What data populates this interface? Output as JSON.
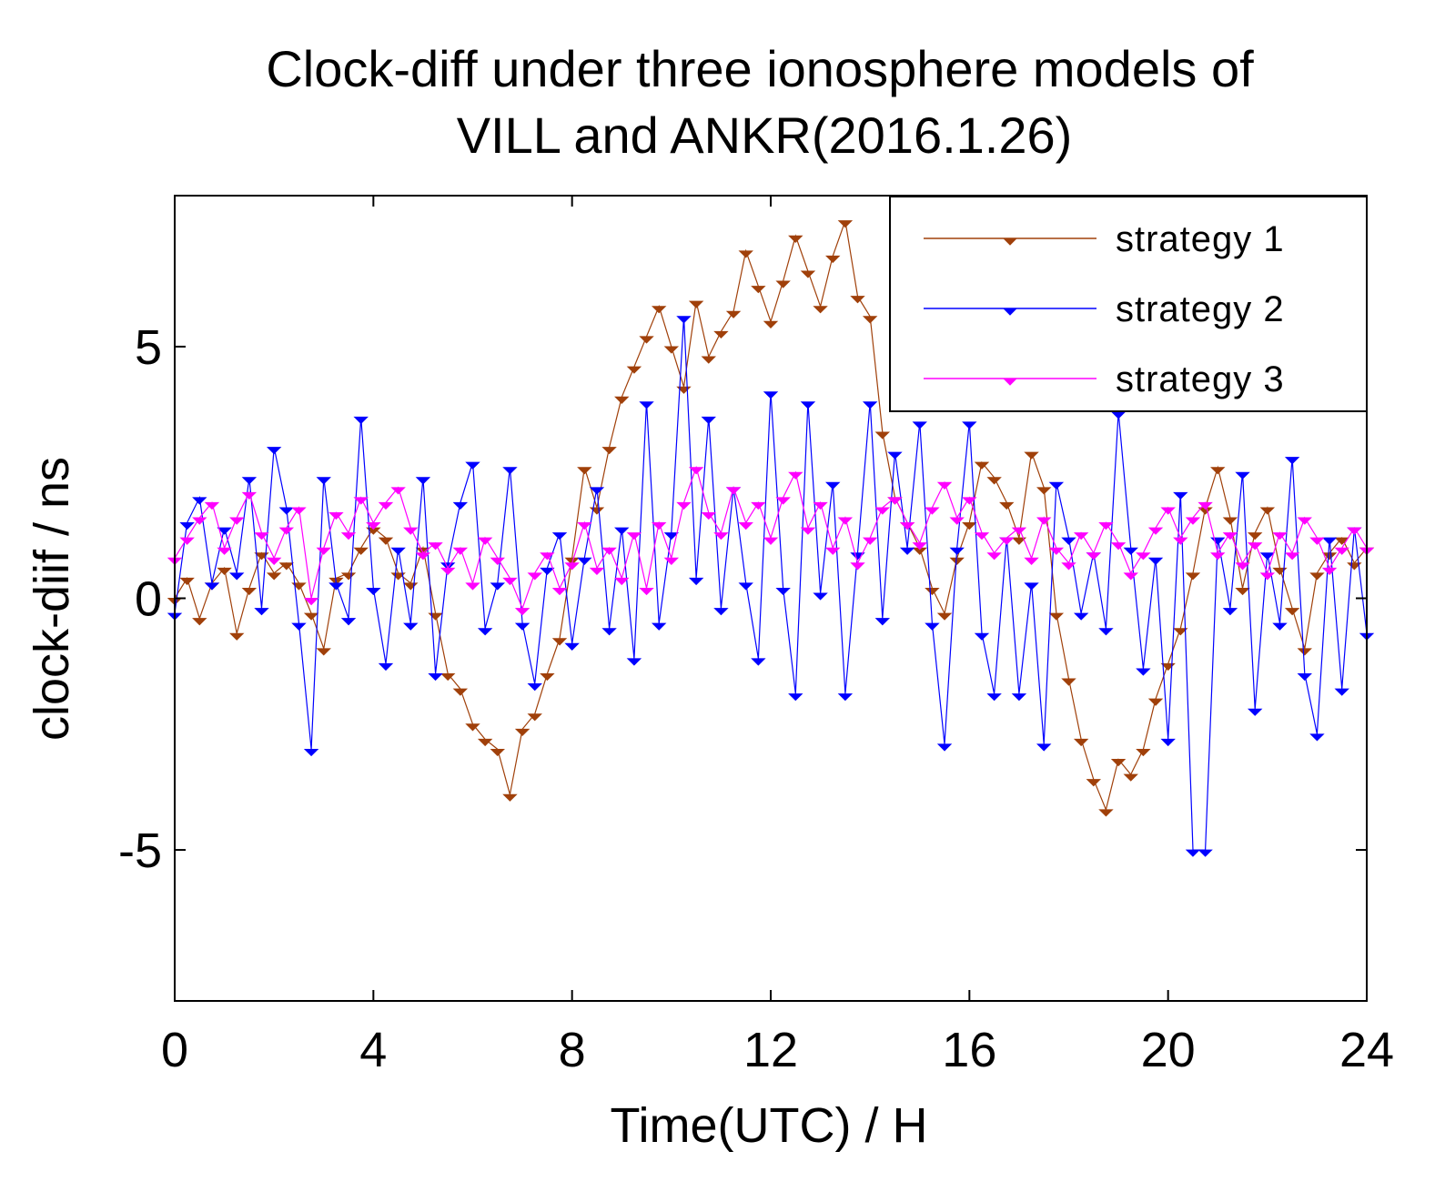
{
  "chart_data": {
    "type": "line",
    "title": [
      "Clock-diff under three ionosphere models of",
      "VILL and ANKR(2016.1.26)"
    ],
    "xlabel": "Time(UTC) / H",
    "ylabel": "clock-diif / ns",
    "xlim": [
      0,
      24
    ],
    "ylim": [
      -8,
      8
    ],
    "xticks": [
      0,
      4,
      8,
      12,
      16,
      20,
      24
    ],
    "xtick_labels": [
      "0",
      "4",
      "8",
      "12",
      "16",
      "20",
      "24"
    ],
    "yticks": [
      -5,
      0,
      5
    ],
    "ytick_labels": [
      "-5",
      "0",
      "5"
    ],
    "legend_position": "top-right",
    "x": [
      0.0,
      0.25,
      0.5,
      0.75,
      1.0,
      1.25,
      1.5,
      1.75,
      2.0,
      2.25,
      2.5,
      2.75,
      3.0,
      3.25,
      3.5,
      3.75,
      4.0,
      4.25,
      4.5,
      4.75,
      5.0,
      5.25,
      5.5,
      5.75,
      6.0,
      6.25,
      6.5,
      6.75,
      7.0,
      7.25,
      7.5,
      7.75,
      8.0,
      8.25,
      8.5,
      8.75,
      9.0,
      9.25,
      9.5,
      9.75,
      10.0,
      10.25,
      10.5,
      10.75,
      11.0,
      11.25,
      11.5,
      11.75,
      12.0,
      12.25,
      12.5,
      12.75,
      13.0,
      13.25,
      13.5,
      13.75,
      14.0,
      14.25,
      14.5,
      14.75,
      15.0,
      15.25,
      15.5,
      15.75,
      16.0,
      16.25,
      16.5,
      16.75,
      17.0,
      17.25,
      17.5,
      17.75,
      18.0,
      18.25,
      18.5,
      18.75,
      19.0,
      19.25,
      19.5,
      19.75,
      20.0,
      20.25,
      20.5,
      20.75,
      21.0,
      21.25,
      21.5,
      21.75,
      22.0,
      22.25,
      22.5,
      22.75,
      23.0,
      23.25,
      23.5,
      23.75,
      24.0
    ],
    "series": [
      {
        "name": "strategy 1",
        "color": "#a0400a",
        "values": [
          0.0,
          0.4,
          -0.4,
          0.3,
          0.6,
          -0.7,
          0.2,
          0.9,
          0.5,
          0.7,
          0.3,
          -0.3,
          -1.0,
          0.4,
          0.5,
          1.0,
          1.4,
          1.2,
          0.5,
          0.3,
          1.0,
          -0.3,
          -1.5,
          -1.8,
          -2.5,
          -2.8,
          -3.0,
          -3.9,
          -2.6,
          -2.3,
          -1.5,
          -0.8,
          0.8,
          2.6,
          1.8,
          3.0,
          4.0,
          4.6,
          5.2,
          5.8,
          5.0,
          4.2,
          5.9,
          4.8,
          5.3,
          5.7,
          6.9,
          6.2,
          5.5,
          6.3,
          7.2,
          6.5,
          5.8,
          6.8,
          7.5,
          6.0,
          5.6,
          3.3,
          2.0,
          1.5,
          1.0,
          0.2,
          -0.3,
          0.8,
          1.5,
          2.7,
          2.4,
          1.9,
          1.2,
          2.9,
          2.2,
          -0.3,
          -1.6,
          -2.8,
          -3.6,
          -4.2,
          -3.2,
          -3.5,
          -3.0,
          -2.0,
          -1.3,
          -0.6,
          0.5,
          1.8,
          2.6,
          1.6,
          0.2,
          1.3,
          1.8,
          0.6,
          -0.2,
          -1.0,
          0.5,
          0.9,
          1.2,
          0.7,
          1.0
        ]
      },
      {
        "name": "strategy 2",
        "color": "#0000ff",
        "values": [
          -0.3,
          1.5,
          2.0,
          0.3,
          1.4,
          0.5,
          2.4,
          -0.2,
          3.0,
          1.8,
          -0.5,
          -3.0,
          2.4,
          0.3,
          -0.4,
          3.6,
          0.2,
          -1.3,
          1.0,
          -0.5,
          2.4,
          -1.5,
          0.7,
          1.9,
          2.7,
          -0.6,
          0.3,
          2.6,
          -0.5,
          -1.7,
          0.6,
          1.3,
          -0.9,
          0.8,
          2.2,
          -0.6,
          1.4,
          -1.2,
          3.9,
          -0.5,
          1.3,
          5.6,
          0.4,
          3.6,
          -0.2,
          2.2,
          0.3,
          -1.2,
          4.1,
          0.2,
          -1.9,
          3.9,
          0.1,
          2.3,
          -1.9,
          0.9,
          3.9,
          -0.4,
          2.9,
          1.0,
          3.5,
          -0.5,
          -2.9,
          1.0,
          3.5,
          -0.7,
          -1.9,
          1.2,
          -1.9,
          0.3,
          -2.9,
          2.3,
          1.2,
          -0.3,
          0.9,
          -0.6,
          3.7,
          1.0,
          -1.4,
          0.8,
          -2.8,
          2.1,
          -5.0,
          -5.0,
          1.2,
          -0.2,
          2.5,
          -2.2,
          0.9,
          -0.5,
          2.8,
          -1.5,
          -2.7,
          1.2,
          -1.8,
          1.4,
          -0.7
        ]
      },
      {
        "name": "strategy 3",
        "color": "#ff00ff",
        "values": [
          0.8,
          1.2,
          1.6,
          1.9,
          1.0,
          1.6,
          2.1,
          1.3,
          0.8,
          1.4,
          1.8,
          0.0,
          1.0,
          1.7,
          1.3,
          2.0,
          1.5,
          1.9,
          2.2,
          1.4,
          0.9,
          1.1,
          0.6,
          1.0,
          0.3,
          1.2,
          0.8,
          0.4,
          -0.2,
          0.5,
          0.9,
          0.2,
          0.7,
          1.5,
          0.6,
          1.0,
          0.4,
          1.3,
          0.2,
          1.5,
          0.8,
          1.9,
          2.6,
          1.7,
          1.3,
          2.2,
          1.5,
          1.9,
          1.2,
          2.0,
          2.5,
          1.4,
          1.9,
          1.0,
          1.6,
          0.7,
          1.2,
          1.8,
          2.0,
          1.5,
          1.1,
          1.8,
          2.3,
          1.6,
          2.0,
          1.3,
          0.9,
          1.2,
          1.4,
          0.8,
          1.6,
          1.0,
          0.7,
          1.3,
          0.9,
          1.5,
          1.1,
          0.5,
          0.9,
          1.4,
          1.8,
          1.2,
          1.6,
          1.9,
          0.9,
          1.3,
          0.7,
          1.1,
          0.5,
          1.3,
          0.9,
          1.6,
          1.2,
          0.6,
          1.0,
          1.4,
          1.0
        ]
      }
    ]
  }
}
